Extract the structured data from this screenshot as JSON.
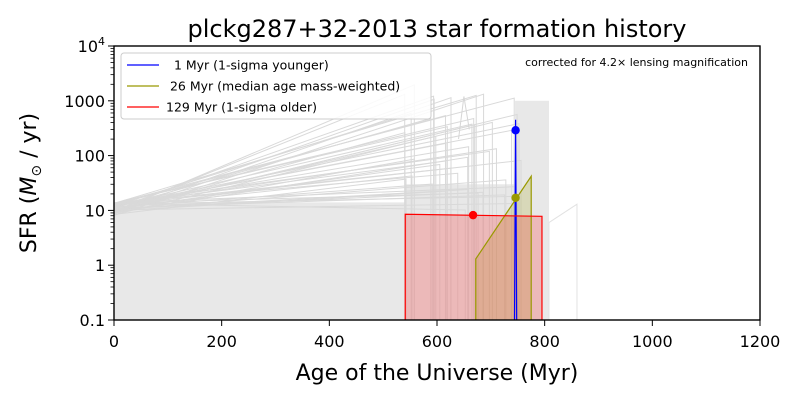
{
  "chart_data": {
    "type": "line",
    "title": "plckg287+32-2013 star formation history",
    "xlabel": "Age of the Universe (Myr)",
    "ylabel_prefix": "SFR (",
    "ylabel_symbol": "M",
    "ylabel_subscript": "⊙",
    "ylabel_suffix": " / yr)",
    "xlim": [
      0,
      1200
    ],
    "ylim": [
      0.1,
      10000
    ],
    "yscale": "log",
    "x_ticks": [
      0,
      200,
      400,
      600,
      800,
      1000,
      1200
    ],
    "x_tick_labels": [
      "0",
      "200",
      "400",
      "600",
      "800",
      "1000",
      "1200"
    ],
    "y_ticks": [
      0.1,
      1,
      10,
      100,
      1000,
      10000
    ],
    "y_tick_labels": [
      "0.1",
      "1",
      "10",
      "100",
      "1000"
    ],
    "y_top_tick": {
      "base": "10",
      "exponent": "4"
    },
    "legend_position": "upper-left",
    "annotation": "corrected for 4.2× lensing magnification",
    "series": [
      {
        "name": "  1 Myr (1-sigma younger)",
        "color": "#0000ff",
        "fill": false,
        "x": [
          744,
          746,
          746,
          748
        ],
        "y": [
          0.1,
          450,
          450,
          0.1
        ],
        "marker": {
          "x": 746,
          "y": 290
        }
      },
      {
        "name": " 26 Myr (median age mass-weighted)",
        "color": "#999900",
        "fill": true,
        "x": [
          672,
          672,
          775,
          775
        ],
        "y": [
          0.1,
          1.3,
          42,
          0.1
        ],
        "marker": {
          "x": 746,
          "y": 17
        }
      },
      {
        "name": "129 Myr (1-sigma older)",
        "color": "#ff0000",
        "fill": true,
        "x": [
          541,
          541,
          795,
          795
        ],
        "y": [
          0.1,
          8.5,
          7.8,
          0.1
        ],
        "marker": {
          "x": 667,
          "y": 8.2
        }
      }
    ]
  }
}
